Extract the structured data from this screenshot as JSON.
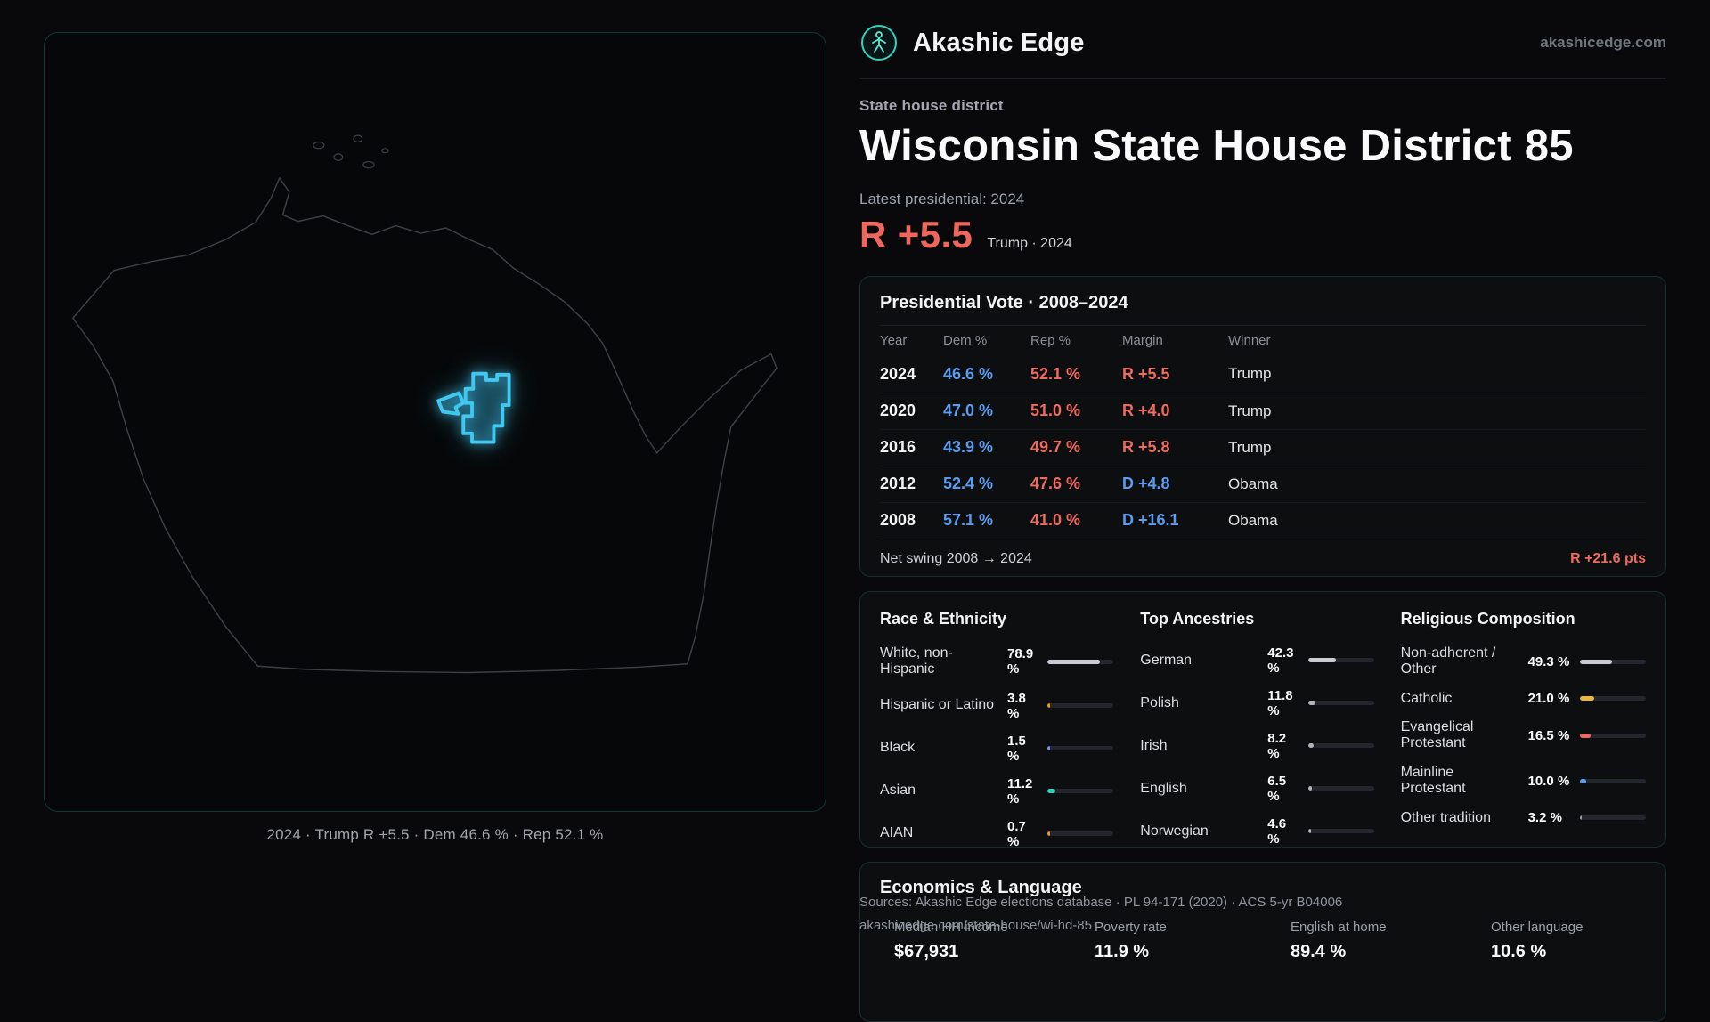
{
  "brand": {
    "name": "Akashic Edge",
    "domain": "akashicedge.com"
  },
  "map": {
    "caption": "2024 · Trump R +5.5 · Dem 46.6 % · Rep 52.1 %"
  },
  "hero": {
    "eyebrow": "State house district",
    "title": "Wisconsin State House District 85",
    "latest_label": "Latest presidential: 2024",
    "margin": "R +5.5",
    "margin_sub": "Trump · 2024"
  },
  "presidential": {
    "title": "Presidential Vote · 2008–2024",
    "columns": [
      "Year",
      "Dem %",
      "Rep %",
      "Margin",
      "Winner"
    ],
    "rows": [
      {
        "year": "2024",
        "dem": "46.6 %",
        "rep": "52.1 %",
        "margin": "R +5.5",
        "margin_party": "R",
        "winner": "Trump"
      },
      {
        "year": "2020",
        "dem": "47.0 %",
        "rep": "51.0 %",
        "margin": "R +4.0",
        "margin_party": "R",
        "winner": "Trump"
      },
      {
        "year": "2016",
        "dem": "43.9 %",
        "rep": "49.7 %",
        "margin": "R +5.8",
        "margin_party": "R",
        "winner": "Trump"
      },
      {
        "year": "2012",
        "dem": "52.4 %",
        "rep": "47.6 %",
        "margin": "D +4.8",
        "margin_party": "D",
        "winner": "Obama"
      },
      {
        "year": "2008",
        "dem": "57.1 %",
        "rep": "41.0 %",
        "margin": "D +16.1",
        "margin_party": "D",
        "winner": "Obama"
      }
    ],
    "net_swing_label": "Net swing 2008 → 2024",
    "net_swing_value": "R +21.6 pts"
  },
  "demographics": {
    "race": {
      "title": "Race & Ethnicity",
      "rows": [
        {
          "label": "White, non-Hispanic",
          "value": "78.9 %",
          "pct": 78.9,
          "color": "#c9cdd3"
        },
        {
          "label": "Hispanic or Latino",
          "value": "3.8 %",
          "pct": 3.8,
          "color": "#f59e0b"
        },
        {
          "label": "Black",
          "value": "1.5 %",
          "pct": 1.5,
          "color": "#818cf8"
        },
        {
          "label": "Asian",
          "value": "11.2 %",
          "pct": 11.2,
          "color": "#2dd4bf"
        },
        {
          "label": "AIAN",
          "value": "0.7 %",
          "pct": 0.7,
          "color": "#fb923c"
        }
      ]
    },
    "ancestries": {
      "title": "Top Ancestries",
      "rows": [
        {
          "label": "German",
          "value": "42.3 %",
          "pct": 42.3,
          "color": "#c9cdd3"
        },
        {
          "label": "Polish",
          "value": "11.8 %",
          "pct": 11.8,
          "color": "#aeb4bc"
        },
        {
          "label": "Irish",
          "value": "8.2 %",
          "pct": 8.2,
          "color": "#aeb4bc"
        },
        {
          "label": "English",
          "value": "6.5 %",
          "pct": 6.5,
          "color": "#aeb4bc"
        },
        {
          "label": "Norwegian",
          "value": "4.6 %",
          "pct": 4.6,
          "color": "#aeb4bc"
        }
      ]
    },
    "religion": {
      "title": "Religious Composition",
      "rows": [
        {
          "label": "Non-adherent / Other",
          "value": "49.3 %",
          "pct": 49.3,
          "color": "#c9cdd3"
        },
        {
          "label": "Catholic",
          "value": "21.0 %",
          "pct": 21.0,
          "color": "#e6b93c"
        },
        {
          "label": "Evangelical Protestant",
          "value": "16.5 %",
          "pct": 16.5,
          "color": "#ef6a5f"
        },
        {
          "label": "Mainline Protestant",
          "value": "10.0 %",
          "pct": 10.0,
          "color": "#5b9cf0"
        },
        {
          "label": "Other tradition",
          "value": "3.2 %",
          "pct": 3.2,
          "color": "#9aa0a8"
        }
      ]
    }
  },
  "economics": {
    "title": "Economics & Language",
    "stats": [
      {
        "label": "Median HH income",
        "value": "$67,931"
      },
      {
        "label": "Poverty rate",
        "value": "11.9 %"
      },
      {
        "label": "English at home",
        "value": "89.4 %"
      },
      {
        "label": "Other language",
        "value": "10.6 %"
      }
    ]
  },
  "sources": {
    "line1": "Sources: Akashic Edge elections database · PL 94-171 (2020) · ACS 5-yr B04006",
    "line2": "akashicedge.com/state-house/wi-hd-85"
  },
  "colors": {
    "accent_teal": "#2dd4bf",
    "district_highlight": "#41c8f0",
    "dem_blue": "#5b9cf0",
    "rep_red": "#ef665c"
  }
}
